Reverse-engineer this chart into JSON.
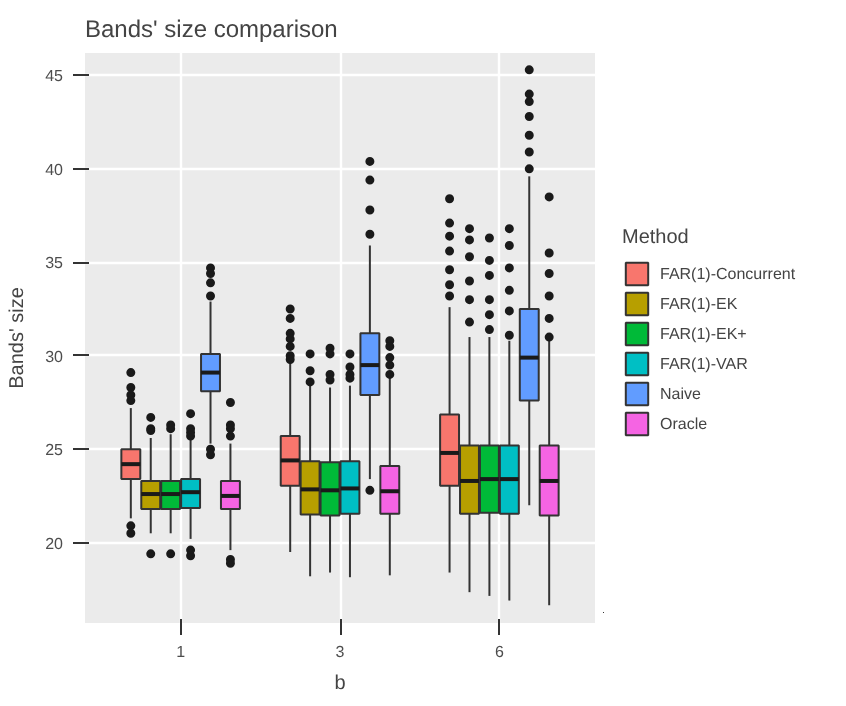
{
  "chart_data": {
    "type": "box",
    "title": "Bands' size comparison",
    "xlabel": "b",
    "ylabel": "Bands' size",
    "legend_title": "Method",
    "categories": [
      "1",
      "3",
      "6"
    ],
    "ylim": [
      15.7,
      46.2
    ],
    "yticks": [
      20,
      25,
      30,
      35,
      40,
      45
    ],
    "grid": true,
    "legend": "right",
    "series": [
      {
        "name": "FAR(1)-Concurrent",
        "color": "#f8766d",
        "boxes": [
          {
            "low": 21.3,
            "q1": 23.4,
            "median": 24.2,
            "q3": 25.0,
            "high": 27.2,
            "outliers": [
              29.1,
              28.3,
              27.9,
              27.6,
              20.9,
              20.5
            ]
          },
          {
            "low": 19.5,
            "q1": 23.05,
            "median": 24.4,
            "q3": 25.7,
            "high": 29.7,
            "outliers": [
              32.5,
              32.0,
              31.2,
              30.9,
              30.5,
              30.0,
              29.8
            ]
          },
          {
            "low": 18.4,
            "q1": 23.05,
            "median": 24.8,
            "q3": 26.85,
            "high": 32.6,
            "outliers": [
              38.4,
              37.1,
              36.4,
              35.6,
              34.6,
              33.8,
              33.2
            ]
          }
        ]
      },
      {
        "name": "FAR(1)-EK",
        "color": "#b79f00",
        "boxes": [
          {
            "low": 20.5,
            "q1": 21.8,
            "median": 22.6,
            "q3": 23.3,
            "high": 25.6,
            "outliers": [
              26.7,
              26.1,
              26.0,
              19.4
            ]
          },
          {
            "low": 18.2,
            "q1": 21.5,
            "median": 22.85,
            "q3": 24.35,
            "high": 28.4,
            "outliers": [
              30.1,
              29.2,
              28.6
            ]
          },
          {
            "low": 17.35,
            "q1": 21.55,
            "median": 23.3,
            "q3": 25.2,
            "high": 31.0,
            "outliers": [
              36.8,
              36.2,
              35.3,
              34.0,
              33.0,
              31.8
            ]
          }
        ]
      },
      {
        "name": "FAR(1)-EK+",
        "color": "#00ba38",
        "boxes": [
          {
            "low": 20.5,
            "q1": 21.8,
            "median": 22.6,
            "q3": 23.3,
            "high": 25.8,
            "outliers": [
              26.3,
              26.1,
              19.4
            ]
          },
          {
            "low": 18.4,
            "q1": 21.45,
            "median": 22.8,
            "q3": 24.3,
            "high": 28.3,
            "outliers": [
              30.4,
              30.1,
              29.0,
              28.7
            ]
          },
          {
            "low": 17.15,
            "q1": 21.6,
            "median": 23.4,
            "q3": 25.2,
            "high": 31.0,
            "outliers": [
              36.3,
              35.1,
              34.3,
              33.0,
              32.2,
              31.4
            ]
          }
        ]
      },
      {
        "name": "FAR(1)-VAR",
        "color": "#00bfc4",
        "boxes": [
          {
            "low": 20.2,
            "q1": 21.85,
            "median": 22.7,
            "q3": 23.4,
            "high": 25.5,
            "outliers": [
              26.9,
              26.1,
              25.9,
              25.7,
              19.6,
              19.3
            ]
          },
          {
            "low": 18.15,
            "q1": 21.55,
            "median": 22.9,
            "q3": 24.35,
            "high": 28.4,
            "outliers": [
              30.1,
              29.4,
              29.0,
              28.8
            ]
          },
          {
            "low": 16.9,
            "q1": 21.55,
            "median": 23.4,
            "q3": 25.2,
            "high": 30.8,
            "outliers": [
              36.8,
              35.9,
              34.7,
              33.5,
              32.4,
              31.1
            ]
          }
        ]
      },
      {
        "name": "Naive",
        "color": "#619cff",
        "boxes": [
          {
            "low": 25.3,
            "q1": 28.1,
            "median": 29.1,
            "q3": 30.1,
            "high": 32.9,
            "outliers": [
              34.7,
              34.4,
              33.9,
              33.2,
              25.0,
              24.7
            ]
          },
          {
            "low": 23.4,
            "q1": 27.9,
            "median": 29.5,
            "q3": 31.2,
            "high": 35.9,
            "outliers": [
              40.4,
              39.4,
              37.8,
              36.5,
              22.8
            ]
          },
          {
            "low": 22.0,
            "q1": 27.6,
            "median": 29.9,
            "q3": 32.5,
            "high": 39.6,
            "outliers": [
              45.3,
              44.0,
              43.6,
              42.8,
              41.8,
              40.9,
              40.0
            ]
          }
        ]
      },
      {
        "name": "Oracle",
        "color": "#f564e3",
        "boxes": [
          {
            "low": 19.6,
            "q1": 21.8,
            "median": 22.5,
            "q3": 23.3,
            "high": 25.3,
            "outliers": [
              27.5,
              26.3,
              26.1,
              25.7,
              19.1,
              18.9
            ]
          },
          {
            "low": 18.25,
            "q1": 21.55,
            "median": 22.75,
            "q3": 24.1,
            "high": 28.9,
            "outliers": [
              30.8,
              30.5,
              29.9,
              29.5,
              29.0
            ]
          },
          {
            "low": 16.65,
            "q1": 21.45,
            "median": 23.3,
            "q3": 25.2,
            "high": 30.8,
            "outliers": [
              38.5,
              35.5,
              34.4,
              33.2,
              32.0,
              31.0
            ]
          }
        ]
      }
    ]
  }
}
